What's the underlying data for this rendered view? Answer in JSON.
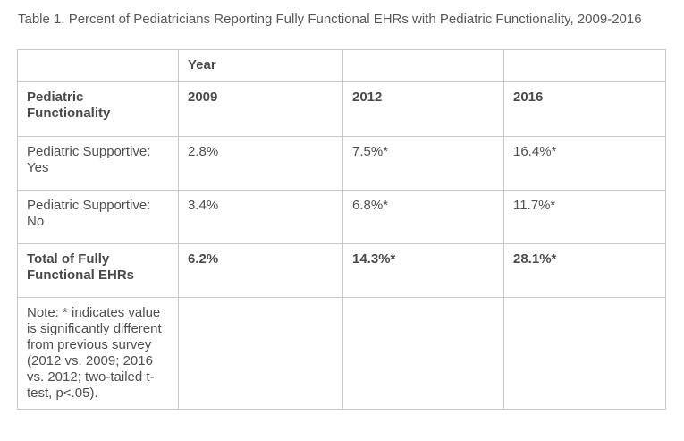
{
  "caption": "Table 1. Percent of Pediatricians Reporting Fully Functional EHRs with Pediatric Functionality, 2009-2016",
  "table": {
    "rows": [
      [
        "",
        "Year",
        "",
        ""
      ],
      [
        "Pediatric Functionality",
        "2009",
        "2012",
        "2016"
      ],
      [
        "Pediatric Supportive: Yes",
        "2.8%",
        "7.5%*",
        "16.4%*"
      ],
      [
        "Pediatric Supportive: No",
        "3.4%",
        "6.8%*",
        "11.7%*"
      ],
      [
        "Total of Fully Functional EHRs",
        "6.2%",
        "14.3%*",
        "28.1%*"
      ],
      [
        "Note: * indicates value is significantly different from previous survey (2012 vs. 2009; 2016 vs. 2012; two-tailed t-test, p<.05).",
        "",
        "",
        ""
      ]
    ]
  },
  "colors": {
    "text": "#545454",
    "border": "#c8c8c8",
    "background": "#ffffff"
  }
}
